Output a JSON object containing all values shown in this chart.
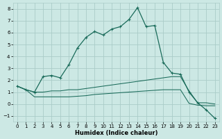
{
  "xlabel": "Humidex (Indice chaleur)",
  "xlim": [
    -0.5,
    23.5
  ],
  "ylim": [
    -1.5,
    8.5
  ],
  "xticks": [
    0,
    1,
    2,
    3,
    4,
    5,
    6,
    7,
    8,
    9,
    10,
    11,
    12,
    13,
    14,
    15,
    16,
    17,
    18,
    19,
    20,
    21,
    22,
    23
  ],
  "yticks": [
    -1,
    0,
    1,
    2,
    3,
    4,
    5,
    6,
    7,
    8
  ],
  "bg_color": "#cce8e4",
  "grid_color": "#aaccc8",
  "line_color": "#1a6b5a",
  "line1_x": [
    0,
    1,
    2,
    3,
    4,
    5,
    6,
    7,
    8,
    9,
    10,
    11,
    12,
    13,
    14,
    15,
    16,
    17,
    18,
    19,
    20,
    21,
    22,
    23
  ],
  "line1_y": [
    1.5,
    1.2,
    1.0,
    2.3,
    2.4,
    2.2,
    3.3,
    4.7,
    5.6,
    6.1,
    5.8,
    6.3,
    6.5,
    7.1,
    8.1,
    6.5,
    6.6,
    3.5,
    2.6,
    2.5,
    1.0,
    0.1,
    -0.5,
    -1.2
  ],
  "line2_x": [
    0,
    1,
    2,
    3,
    4,
    5,
    6,
    7,
    8,
    9,
    10,
    11,
    12,
    13,
    14,
    15,
    16,
    17,
    18,
    19,
    20,
    21,
    22,
    23
  ],
  "line2_y": [
    1.5,
    1.2,
    1.0,
    1.0,
    1.1,
    1.1,
    1.2,
    1.2,
    1.3,
    1.4,
    1.5,
    1.6,
    1.7,
    1.8,
    1.9,
    2.0,
    2.1,
    2.2,
    2.3,
    2.3,
    1.1,
    0.1,
    0.1,
    0.0
  ],
  "line3_x": [
    0,
    1,
    2,
    3,
    4,
    5,
    6,
    7,
    8,
    9,
    10,
    11,
    12,
    13,
    14,
    15,
    16,
    17,
    18,
    19,
    20,
    21,
    22,
    23
  ],
  "line3_y": [
    1.5,
    1.2,
    0.6,
    0.6,
    0.6,
    0.6,
    0.6,
    0.65,
    0.7,
    0.8,
    0.85,
    0.9,
    0.95,
    1.0,
    1.05,
    1.1,
    1.15,
    1.2,
    1.2,
    1.2,
    0.05,
    -0.1,
    -0.15,
    -0.15
  ]
}
